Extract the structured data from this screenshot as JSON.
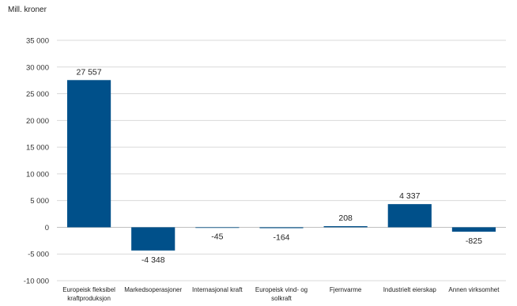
{
  "chart_data": {
    "type": "bar",
    "title": "",
    "ylabel": "Mill. kroner",
    "xlabel": "",
    "categories": [
      "Europeisk fleksibel kraftproduksjon",
      "Markedsoperasjoner",
      "Internasjonal kraft",
      "Europeisk vind- og solkraft",
      "Fjernvarme",
      "Industrielt eierskap",
      "Annen virksomhet"
    ],
    "category_lines": [
      [
        "Europeisk fleksibel",
        "kraftproduksjon"
      ],
      [
        "Markedsoperasjoner"
      ],
      [
        "Internasjonal kraft"
      ],
      [
        "Europeisk vind- og",
        "solkraft"
      ],
      [
        "Fjernvarme"
      ],
      [
        "Industrielt eierskap"
      ],
      [
        "Annen virksomhet"
      ]
    ],
    "values": [
      27557,
      -4348,
      -45,
      -164,
      208,
      4337,
      -825
    ],
    "value_labels": [
      "27 557",
      "-4 348",
      "-45",
      "-164",
      "208",
      "4 337",
      "-825"
    ],
    "ylim": [
      -10000,
      35000
    ],
    "yticks": [
      -10000,
      -5000,
      0,
      5000,
      10000,
      15000,
      20000,
      25000,
      30000,
      35000
    ],
    "ytick_labels": [
      "-10 000",
      "-5 000",
      "0",
      "5 000",
      "10 000",
      "15 000",
      "20 000",
      "25 000",
      "30 000",
      "35 000"
    ],
    "grid": true,
    "legend": "none",
    "bar_color": "#00508A",
    "grid_color": "#D9D9D9"
  }
}
